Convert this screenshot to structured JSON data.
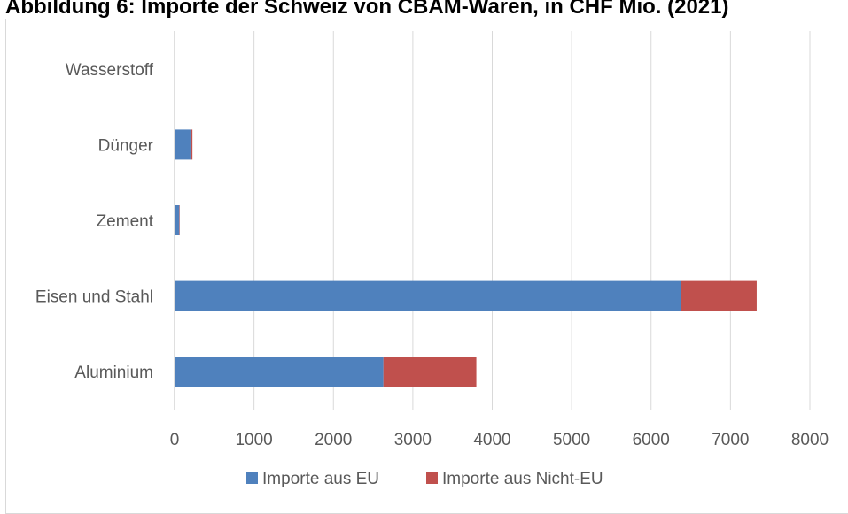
{
  "title": "Abbildung 6: Importe der Schweiz von CBAM-Waren, in CHF Mio. (2021)",
  "chart_data": {
    "type": "bar",
    "orientation": "horizontal",
    "stacked": true,
    "categories": [
      "Aluminium",
      "Eisen und Stahl",
      "Zement",
      "Dünger",
      "Wasserstoff"
    ],
    "series": [
      {
        "name": "Importe aus EU",
        "values": [
          2630,
          6380,
          60,
          200,
          0
        ],
        "color": "#4f81bd"
      },
      {
        "name": "Importe aus Nicht-EU",
        "values": [
          1170,
          950,
          5,
          25,
          0
        ],
        "color": "#c0504d"
      }
    ],
    "xlim": [
      0,
      8000
    ],
    "xticks": [
      "0",
      "1000",
      "2000",
      "3000",
      "4000",
      "5000",
      "6000",
      "7000",
      "8000"
    ],
    "grid": true,
    "legend": "bottom"
  }
}
